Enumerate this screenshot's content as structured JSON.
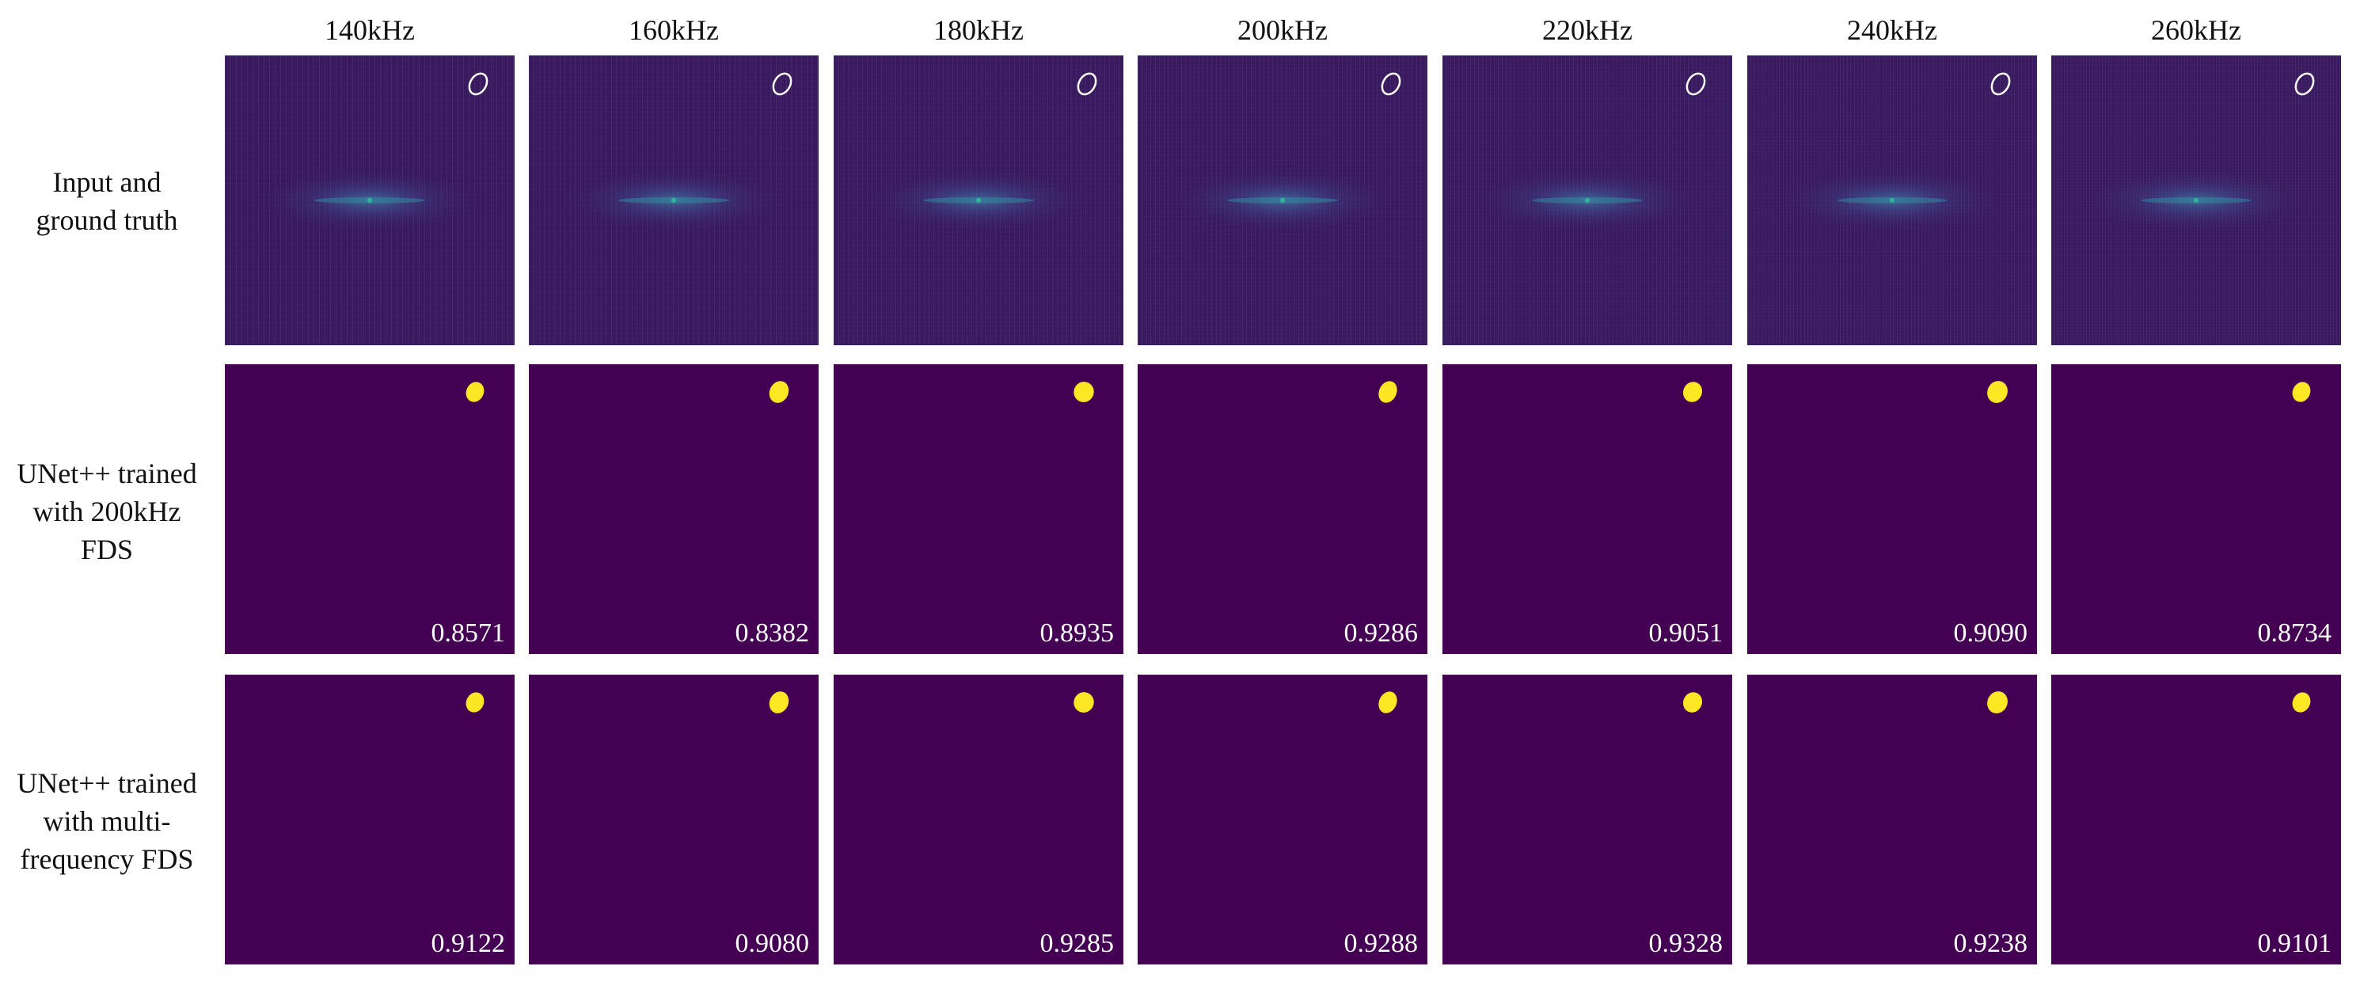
{
  "columns": [
    "140kHz",
    "160kHz",
    "180kHz",
    "200kHz",
    "220kHz",
    "240kHz",
    "260kHz"
  ],
  "rows": [
    {
      "label_lines": [
        "Input and",
        "ground truth"
      ],
      "kind": "input"
    },
    {
      "label_lines": [
        "UNet++ trained",
        "with 200kHz",
        "FDS"
      ],
      "kind": "prediction",
      "scores": [
        "0.8571",
        "0.8382",
        "0.8935",
        "0.9286",
        "0.9051",
        "0.9090",
        "0.8734"
      ]
    },
    {
      "label_lines": [
        "UNet++ trained",
        "with multi-",
        "frequency FDS"
      ],
      "kind": "prediction",
      "scores": [
        "0.9122",
        "0.9080",
        "0.9285",
        "0.9288",
        "0.9328",
        "0.9238",
        "0.9101"
      ]
    }
  ],
  "colors": {
    "input_background": "#3a1a5e",
    "prediction_background": "#440154",
    "defect_fill": "#fde725",
    "ground_truth_outline": "#ffffff",
    "wave_center": "#2fb49a"
  }
}
